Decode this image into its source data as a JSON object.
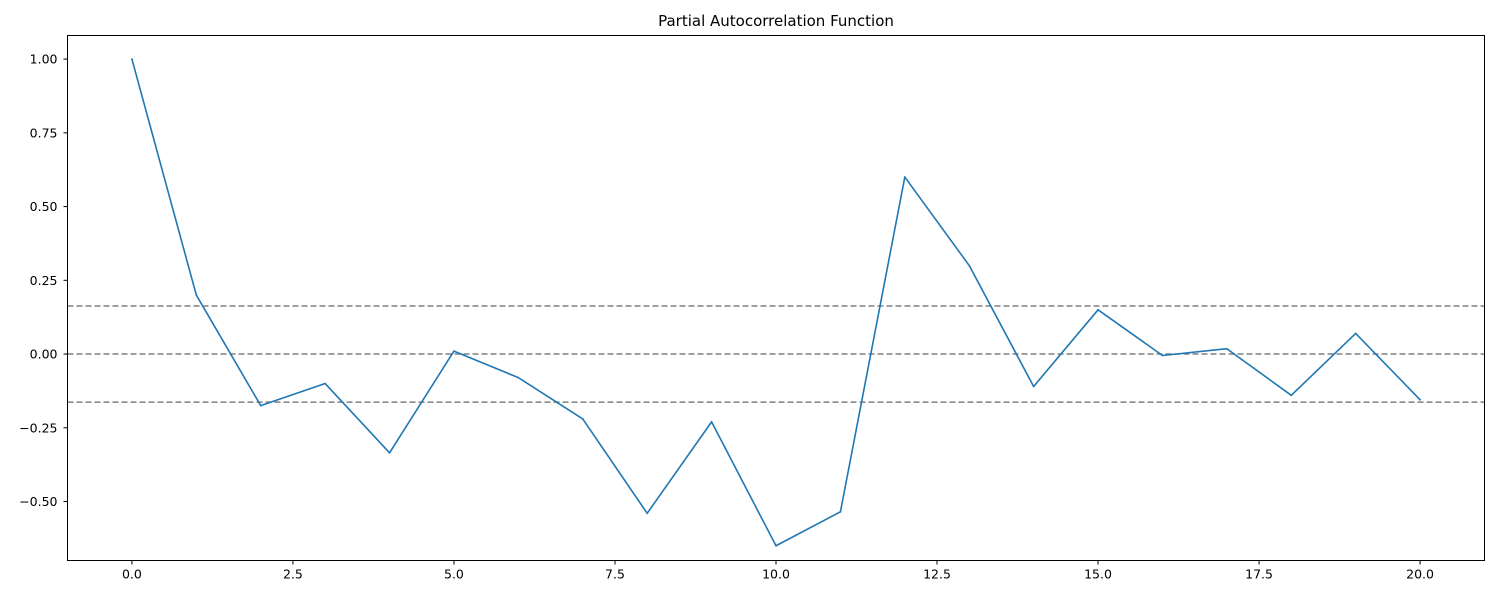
{
  "chart_data": {
    "type": "line",
    "title": "Partial Autocorrelation Function",
    "xlabel": "",
    "ylabel": "",
    "xlim": [
      -1,
      21
    ],
    "ylim": [
      -0.7,
      1.08
    ],
    "x_ticks": [
      0,
      2.5,
      5,
      7.5,
      10,
      12.5,
      15,
      17.5,
      20
    ],
    "x_tick_labels": [
      "0.0",
      "2.5",
      "5.0",
      "7.5",
      "10.0",
      "12.5",
      "15.0",
      "17.5",
      "20.0"
    ],
    "y_ticks": [
      1.0,
      0.75,
      0.5,
      0.25,
      0.0,
      -0.25,
      -0.5
    ],
    "y_tick_labels": [
      "1.00",
      "0.75",
      "0.50",
      "0.25",
      "0.00",
      "−0.25",
      "−0.50"
    ],
    "grid": false,
    "series": [
      {
        "color": "#1f77b4",
        "x": [
          0,
          1,
          2,
          3,
          4,
          5,
          6,
          7,
          8,
          9,
          10,
          11,
          12,
          13,
          14,
          15,
          16,
          17,
          18,
          19,
          20
        ],
        "values": [
          1.0,
          0.2,
          -0.175,
          -0.1,
          -0.335,
          0.01,
          -0.08,
          -0.22,
          -0.54,
          -0.23,
          -0.65,
          -0.535,
          0.6,
          0.3,
          -0.11,
          0.15,
          -0.005,
          0.018,
          -0.14,
          0.07,
          -0.155
        ]
      }
    ],
    "reference_lines": [
      {
        "y": 0.163,
        "color": "#808080",
        "style": "dashed"
      },
      {
        "y": 0.0,
        "color": "#808080",
        "style": "dashed"
      },
      {
        "y": -0.163,
        "color": "#808080",
        "style": "dashed"
      }
    ]
  }
}
